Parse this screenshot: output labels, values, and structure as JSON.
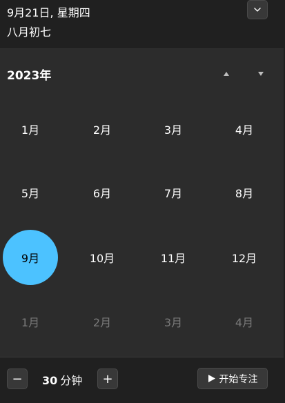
{
  "header": {
    "date": "9月21日, 星期四",
    "lunar": "八月初七",
    "collapse_icon": "chevron-down-icon"
  },
  "calendar": {
    "year": "2023年",
    "nav_up_icon": "caret-up-icon",
    "nav_down_icon": "caret-down-icon",
    "months": [
      {
        "label": "1月",
        "state": "normal"
      },
      {
        "label": "2月",
        "state": "normal"
      },
      {
        "label": "3月",
        "state": "normal"
      },
      {
        "label": "4月",
        "state": "normal"
      },
      {
        "label": "5月",
        "state": "normal"
      },
      {
        "label": "6月",
        "state": "normal"
      },
      {
        "label": "7月",
        "state": "normal"
      },
      {
        "label": "8月",
        "state": "normal"
      },
      {
        "label": "9月",
        "state": "selected"
      },
      {
        "label": "10月",
        "state": "normal"
      },
      {
        "label": "11月",
        "state": "normal"
      },
      {
        "label": "12月",
        "state": "normal"
      },
      {
        "label": "1月",
        "state": "dim"
      },
      {
        "label": "2月",
        "state": "dim"
      },
      {
        "label": "3月",
        "state": "dim"
      },
      {
        "label": "4月",
        "state": "dim"
      }
    ]
  },
  "focus": {
    "minus_label": "−",
    "duration_value": "30",
    "duration_unit": "分钟",
    "plus_label": "+",
    "start_label": "开始专注",
    "start_icon": "play-icon"
  },
  "colors": {
    "accent": "#4cc2ff",
    "panel_bg": "#2c2c2c",
    "header_bg": "#202020",
    "dim_text": "#7a7a7a"
  }
}
